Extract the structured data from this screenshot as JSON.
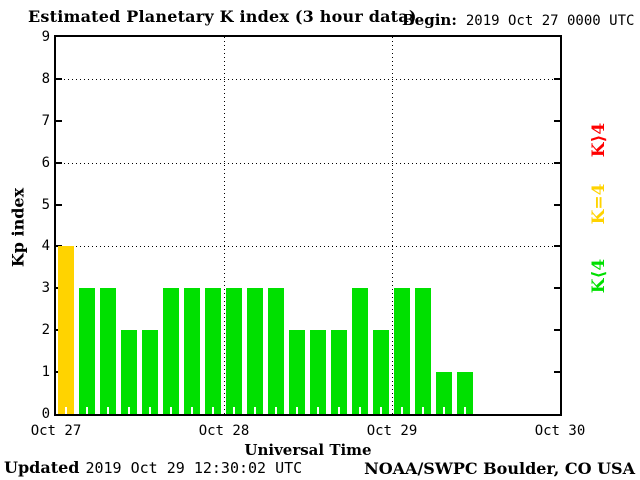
{
  "header": {
    "title": "Estimated Planetary K index (3 hour data)",
    "begin_label": "Begin:",
    "begin_value": "2019 Oct 27 0000 UTC"
  },
  "chart_data": {
    "type": "bar",
    "title": "Estimated Planetary K index (3 hour data)",
    "xlabel": "Universal Time",
    "ylabel": "Kp index",
    "ylim": [
      0,
      9
    ],
    "y_ticks": [
      0,
      1,
      2,
      3,
      4,
      5,
      6,
      7,
      8,
      9
    ],
    "grid_y_dotted": [
      4,
      6,
      8
    ],
    "x_day_labels": [
      "Oct 27",
      "Oct 28",
      "Oct 29",
      "Oct 30"
    ],
    "x_range_days": 3,
    "bar_interval_hours": 3,
    "x_start": "2019 Oct 27 0000 UTC",
    "values": [
      4,
      3,
      3,
      2,
      2,
      3,
      3,
      3,
      3,
      3,
      3,
      2,
      2,
      2,
      3,
      2,
      3,
      3,
      1,
      1
    ],
    "color_rules": {
      "k_below_4": "#00E000",
      "k_equal_4": "#FFD300",
      "k_above_4": "#FF0000"
    },
    "grid": "dotted horizontal at 4,6,8; dotted vertical at day boundaries",
    "legend_position": "right, rotated 90deg"
  },
  "legend": {
    "items": [
      {
        "label": "K⟩4",
        "color": "#FF0000"
      },
      {
        "label": "K=4",
        "color": "#FFD300"
      },
      {
        "label": "K⟨4",
        "color": "#00E000"
      }
    ]
  },
  "footer": {
    "updated_label": "Updated",
    "updated_value": "2019 Oct 29 12:30:02 UTC",
    "source": "NOAA/SWPC Boulder, CO USA"
  }
}
